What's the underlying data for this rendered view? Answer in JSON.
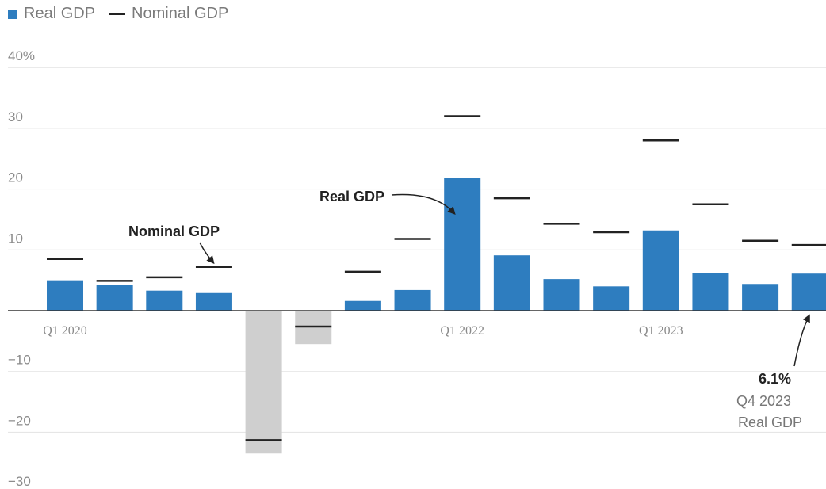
{
  "legend": {
    "real_label": "Real GDP",
    "nominal_label": "Nominal GDP"
  },
  "colors": {
    "real_positive": "#2e7dbf",
    "real_negative": "#cfcfcf",
    "nominal": "#222222",
    "grid": "#e3e3e3"
  },
  "chart_data": {
    "type": "bar",
    "title": "",
    "xlabel": "",
    "ylabel": "",
    "ylim": [
      -30,
      40
    ],
    "yticks": [
      -30,
      -20,
      -10,
      0,
      10,
      20,
      30,
      40
    ],
    "ytick_labels": [
      "−30",
      "−20",
      "−10",
      "",
      "10",
      "20",
      "30",
      "40%"
    ],
    "categories": [
      "Q1 2020",
      "Q2 2020",
      "Q3 2020",
      "Q4 2020",
      "Q1 2021",
      "Q2 2021",
      "Q3 2021",
      "Q4 2021",
      "Q1 2022",
      "Q2 2022",
      "Q3 2022",
      "Q4 2022",
      "Q1 2023",
      "Q2 2023",
      "Q3 2023",
      "Q4 2023"
    ],
    "x_tick_labels": [
      {
        "index": 0,
        "label": "Q1 2020"
      },
      {
        "index": 8,
        "label": "Q1 2022"
      },
      {
        "index": 12,
        "label": "Q1 2023"
      }
    ],
    "series": [
      {
        "name": "Real GDP",
        "kind": "bar",
        "values": [
          5.0,
          4.3,
          3.3,
          2.9,
          -23.5,
          -5.5,
          1.6,
          3.4,
          21.8,
          9.1,
          5.2,
          4.0,
          13.2,
          6.2,
          4.4,
          6.1
        ]
      },
      {
        "name": "Nominal GDP",
        "kind": "marker",
        "values": [
          8.5,
          4.9,
          5.5,
          7.2,
          -21.3,
          -2.6,
          6.4,
          11.8,
          32.0,
          18.5,
          14.3,
          12.9,
          28.0,
          17.5,
          11.5,
          10.8
        ]
      }
    ],
    "annotations": [
      {
        "text": "Nominal GDP",
        "target_index": 3
      },
      {
        "text": "Real GDP",
        "target_index": 8
      },
      {
        "text": "6.1%",
        "subtext": [
          "Q4 2023",
          "Real GDP"
        ],
        "target_index": 15
      }
    ]
  }
}
